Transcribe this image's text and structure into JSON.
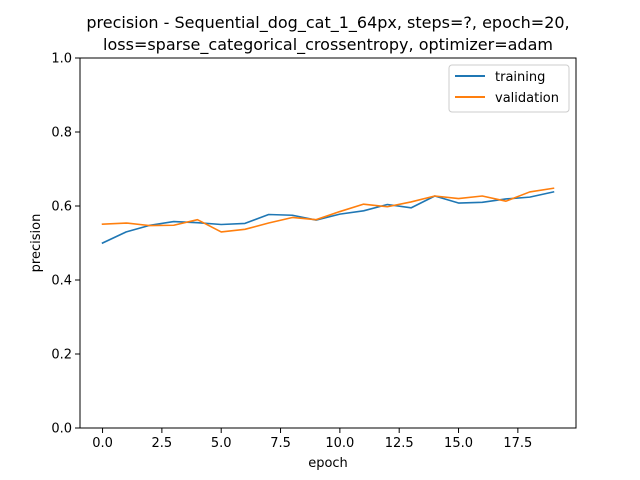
{
  "chart_data": {
    "type": "line",
    "title_line1": "precision - Sequential_dog_cat_1_64px, steps=?, epoch=20,",
    "title_line2": "loss=sparse_categorical_crossentropy, optimizer=adam",
    "xlabel": "epoch",
    "ylabel": "precision",
    "xlim": [
      -0.95,
      19.95
    ],
    "ylim": [
      0.0,
      1.0
    ],
    "xticks": [
      0.0,
      2.5,
      5.0,
      7.5,
      10.0,
      12.5,
      15.0,
      17.5
    ],
    "xtick_labels": [
      "0.0",
      "2.5",
      "5.0",
      "7.5",
      "10.0",
      "12.5",
      "15.0",
      "17.5"
    ],
    "yticks": [
      0.0,
      0.2,
      0.4,
      0.6,
      0.8,
      1.0
    ],
    "ytick_labels": [
      "0.0",
      "0.2",
      "0.4",
      "0.6",
      "0.8",
      "1.0"
    ],
    "grid": false,
    "legend_position": "top-right",
    "x": [
      0,
      1,
      2,
      3,
      4,
      5,
      6,
      7,
      8,
      9,
      10,
      11,
      12,
      13,
      14,
      15,
      16,
      17,
      18,
      19
    ],
    "series": [
      {
        "name": "training",
        "color": "#1f77b4",
        "values": [
          0.5,
          0.53,
          0.548,
          0.558,
          0.555,
          0.55,
          0.553,
          0.577,
          0.575,
          0.562,
          0.578,
          0.587,
          0.604,
          0.595,
          0.627,
          0.608,
          0.61,
          0.619,
          0.624,
          0.638
        ]
      },
      {
        "name": "validation",
        "color": "#ff7f0e",
        "values": [
          0.551,
          0.554,
          0.547,
          0.548,
          0.563,
          0.53,
          0.537,
          0.554,
          0.569,
          0.563,
          0.585,
          0.605,
          0.598,
          0.611,
          0.627,
          0.62,
          0.627,
          0.613,
          0.638,
          0.648
        ]
      }
    ]
  }
}
